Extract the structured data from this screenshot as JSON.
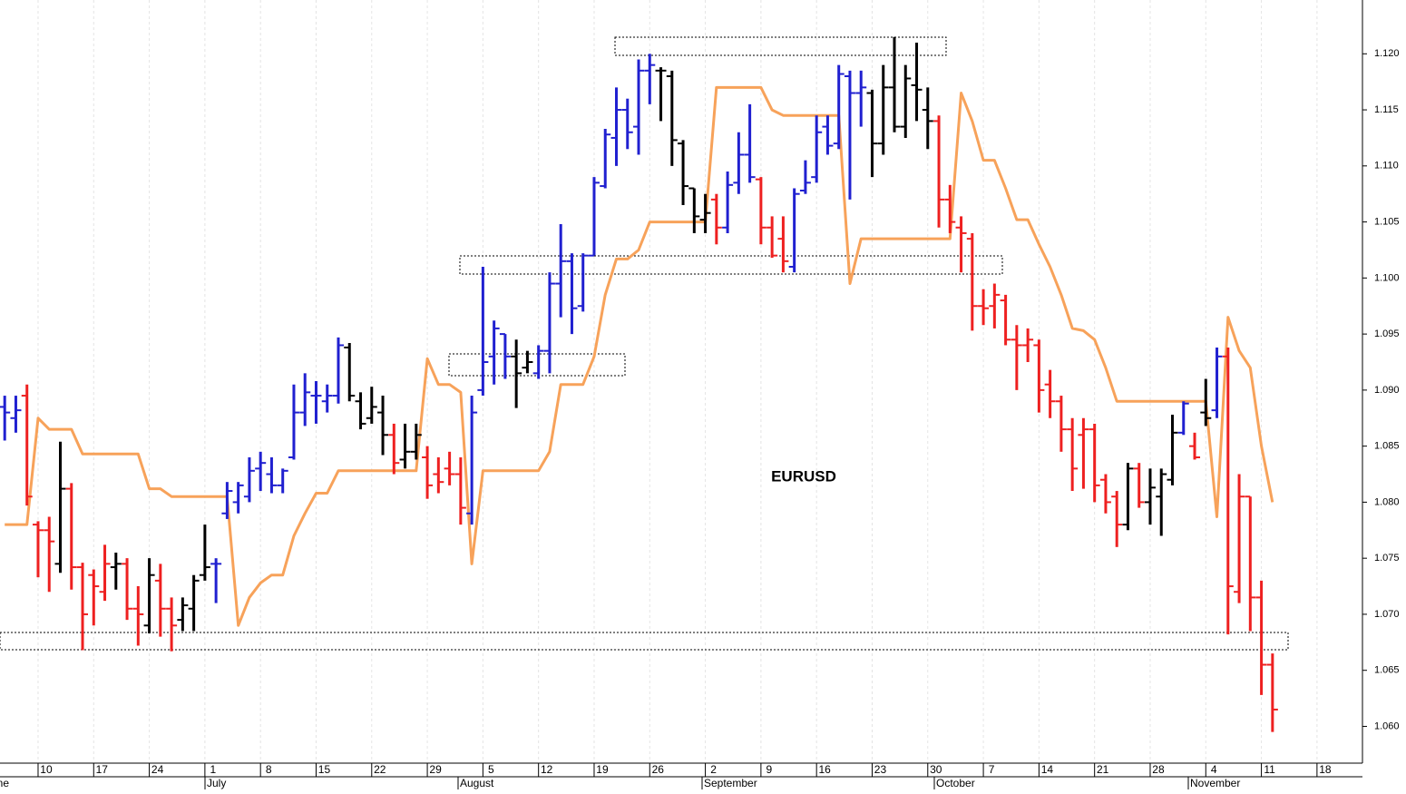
{
  "chart_data": {
    "type": "ohlc",
    "annotation": "EURUSD",
    "categories": [
      null,
      null,
      null,
      "10",
      null,
      null,
      null,
      null,
      "17",
      null,
      null,
      null,
      null,
      "24",
      null,
      null,
      null,
      null,
      "1",
      null,
      null,
      null,
      null,
      "8",
      null,
      null,
      null,
      null,
      "15",
      null,
      null,
      null,
      null,
      "22",
      null,
      null,
      null,
      null,
      "29",
      null,
      null,
      null,
      null,
      "5",
      null,
      null,
      null,
      null,
      "12",
      null,
      null,
      null,
      null,
      "19",
      null,
      null,
      null,
      null,
      "26",
      null,
      null,
      null,
      null,
      "2",
      null,
      null,
      null,
      null,
      "9",
      null,
      null,
      null,
      null,
      "16",
      null,
      null,
      null,
      null,
      "23",
      null,
      null,
      null,
      null,
      "30",
      null,
      null,
      null,
      null,
      "7",
      null,
      null,
      null,
      null,
      "14",
      null,
      null,
      null,
      null,
      "21",
      null,
      null,
      null,
      null,
      "28",
      null,
      null,
      null,
      null,
      "4",
      null,
      null,
      null,
      null,
      "11",
      null,
      null,
      null,
      null,
      "18",
      null,
      null,
      null,
      null
    ],
    "months": [
      "ne",
      "July",
      "August",
      "September",
      "October",
      "November"
    ],
    "open": [
      1.0885,
      1.0875,
      1.0895,
      1.078,
      1.0775,
      1.0745,
      1.0812,
      1.0742,
      1.0735,
      1.072,
      1.0742,
      1.0745,
      1.0705,
      1.069,
      1.073,
      1.0705,
      1.0695,
      1.0705,
      1.0735,
      1.0745,
      1.079,
      1.08,
      1.0805,
      1.083,
      1.0825,
      1.0815,
      1.084,
      1.088,
      1.0895,
      1.089,
      1.0895,
      1.0938,
      1.089,
      1.0875,
      1.088,
      1.086,
      1.0838,
      1.0845,
      1.084,
      1.0825,
      1.083,
      1.0825,
      1.079,
      1.09,
      1.093,
      1.095,
      1.093,
      1.092,
      1.0915,
      1.0935,
      1.0995,
      1.1015,
      1.0975,
      1.102,
      1.1082,
      1.1125,
      1.115,
      1.1135,
      1.1185,
      1.1185,
      1.118,
      1.112,
      1.108,
      1.1052,
      1.107,
      1.1045,
      1.1085,
      1.111,
      1.1088,
      1.1045,
      1.1035,
      1.101,
      1.1078,
      1.109,
      1.1135,
      1.112,
      1.118,
      1.1165,
      1.1165,
      1.112,
      1.117,
      1.1135,
      1.1172,
      1.115,
      1.114,
      1.107,
      1.1045,
      1.1035,
      1.0975,
      1.0975,
      1.098,
      1.0945,
      1.094,
      1.094,
      1.0905,
      1.089,
      1.0865,
      1.086,
      1.0865,
      1.082,
      1.0805,
      1.078,
      1.083,
      1.08,
      1.0805,
      1.082,
      1.0862,
      1.085,
      1.088,
      1.0882,
      1.093,
      1.072,
      1.0805,
      1.0715,
      1.0655,
      null,
      null,
      null,
      null,
      null,
      null,
      null,
      null
    ],
    "high": [
      1.0895,
      1.0895,
      1.0905,
      1.0783,
      1.0787,
      1.0854,
      1.0817,
      1.0746,
      1.074,
      1.0762,
      1.0755,
      1.075,
      1.0725,
      1.075,
      1.0745,
      1.0715,
      1.0715,
      1.0735,
      1.078,
      1.075,
      1.0818,
      1.0818,
      1.084,
      1.0845,
      1.084,
      1.083,
      1.0905,
      1.0915,
      1.0908,
      1.0905,
      1.0947,
      1.0942,
      1.0898,
      1.0903,
      1.0895,
      1.087,
      1.087,
      1.087,
      1.085,
      1.084,
      1.0845,
      1.084,
      1.0895,
      1.101,
      1.0962,
      1.095,
      1.0945,
      1.0935,
      1.094,
      1.1005,
      1.1048,
      1.1022,
      1.1022,
      1.109,
      1.1133,
      1.117,
      1.116,
      1.1195,
      1.12,
      1.1188,
      1.1185,
      1.1123,
      1.108,
      1.1075,
      1.1075,
      1.1095,
      1.113,
      1.1155,
      1.109,
      1.1055,
      1.1055,
      1.108,
      1.1105,
      1.1145,
      1.1145,
      1.119,
      1.1185,
      1.1185,
      1.1168,
      1.119,
      1.1215,
      1.119,
      1.121,
      1.117,
      1.1145,
      1.1083,
      1.1055,
      1.104,
      1.099,
      1.0995,
      1.0985,
      1.0958,
      1.0955,
      1.0945,
      1.0918,
      1.0895,
      1.0875,
      1.0875,
      1.087,
      1.0825,
      1.081,
      1.0835,
      1.0835,
      1.083,
      1.083,
      1.0878,
      1.089,
      1.0862,
      1.091,
      1.0938,
      1.0938,
      1.0825,
      1.0805,
      1.073,
      1.0665,
      null,
      null,
      null,
      null,
      null,
      null,
      null,
      null
    ],
    "low": [
      1.0855,
      1.0862,
      1.0797,
      1.0733,
      1.072,
      1.0737,
      1.0722,
      1.0668,
      1.069,
      1.0712,
      1.0722,
      1.0695,
      1.0672,
      1.0683,
      1.068,
      1.0667,
      1.0685,
      1.0685,
      1.073,
      1.071,
      1.0785,
      1.079,
      1.08,
      1.081,
      1.0808,
      1.0808,
      1.0838,
      1.0868,
      1.087,
      1.088,
      1.0888,
      1.089,
      1.0865,
      1.087,
      1.0842,
      1.0825,
      1.083,
      1.0838,
      1.0803,
      1.0808,
      1.0815,
      1.078,
      1.078,
      1.0895,
      1.0905,
      1.091,
      1.0884,
      1.0915,
      1.091,
      1.0915,
      1.0965,
      1.095,
      1.097,
      1.102,
      1.108,
      1.11,
      1.1115,
      1.111,
      1.1155,
      1.114,
      1.11,
      1.1065,
      1.104,
      1.104,
      1.103,
      1.104,
      1.1075,
      1.1085,
      1.103,
      1.1018,
      1.1005,
      1.1005,
      1.1075,
      1.1085,
      1.111,
      1.1115,
      1.107,
      1.1135,
      1.109,
      1.111,
      1.113,
      1.1125,
      1.114,
      1.1115,
      1.1045,
      1.104,
      1.1005,
      1.0953,
      1.0958,
      1.0955,
      1.094,
      1.09,
      1.0925,
      1.088,
      1.0875,
      1.0845,
      1.081,
      1.0812,
      1.08,
      1.079,
      1.076,
      1.0775,
      1.0795,
      1.078,
      1.077,
      1.0815,
      1.086,
      1.0838,
      1.0868,
      1.0875,
      1.0682,
      1.071,
      1.0685,
      1.0628,
      1.0595,
      null,
      null,
      null,
      null,
      null,
      null,
      null,
      null
    ],
    "close": [
      1.088,
      1.0882,
      1.0805,
      1.0775,
      1.0765,
      1.0812,
      1.0742,
      1.07,
      1.0725,
      1.0745,
      1.0745,
      1.0705,
      1.07,
      1.0735,
      1.0705,
      1.069,
      1.0708,
      1.073,
      1.0742,
      1.0745,
      1.081,
      1.0815,
      1.0828,
      1.0835,
      1.0815,
      1.0828,
      1.088,
      1.0898,
      1.0895,
      1.0895,
      1.094,
      1.0895,
      1.087,
      1.0885,
      1.086,
      1.0835,
      1.0845,
      1.086,
      1.0815,
      1.0818,
      1.0825,
      1.0795,
      1.088,
      1.0925,
      1.0955,
      1.093,
      1.0915,
      1.0925,
      1.0935,
      1.0995,
      1.1015,
      1.0973,
      1.102,
      1.1085,
      1.1128,
      1.115,
      1.113,
      1.1185,
      1.119,
      1.1185,
      1.1123,
      1.1082,
      1.1055,
      1.1058,
      1.1045,
      1.1083,
      1.111,
      1.109,
      1.1045,
      1.102,
      1.1015,
      1.1075,
      1.1085,
      1.113,
      1.1118,
      1.1182,
      1.1165,
      1.117,
      1.112,
      1.117,
      1.1135,
      1.1178,
      1.1168,
      1.114,
      1.107,
      1.105,
      1.104,
      1.0975,
      1.0973,
      1.0985,
      1.0945,
      1.094,
      1.0945,
      1.09,
      1.089,
      1.0865,
      1.083,
      1.0865,
      1.0815,
      1.08,
      1.078,
      1.083,
      1.08,
      1.0813,
      1.0825,
      1.0862,
      1.0888,
      1.084,
      1.0875,
      1.093,
      1.0725,
      1.0805,
      1.0715,
      1.0655,
      1.0615,
      null,
      null,
      null,
      null,
      null,
      null,
      null,
      null
    ],
    "colors": [
      "#2020d0",
      "#2020d0",
      "#ee2020",
      "#ee2020",
      "#ee2020",
      "#000000",
      "#ee2020",
      "#ee2020",
      "#ee2020",
      "#ee2020",
      "#000000",
      "#ee2020",
      "#ee2020",
      "#000000",
      "#ee2020",
      "#ee2020",
      "#000000",
      "#000000",
      "#000000",
      "#2020d0",
      "#2020d0",
      "#2020d0",
      "#2020d0",
      "#2020d0",
      "#2020d0",
      "#2020d0",
      "#2020d0",
      "#2020d0",
      "#2020d0",
      "#2020d0",
      "#2020d0",
      "#000000",
      "#000000",
      "#000000",
      "#000000",
      "#ee2020",
      "#000000",
      "#000000",
      "#ee2020",
      "#ee2020",
      "#ee2020",
      "#ee2020",
      "#2020d0",
      "#2020d0",
      "#2020d0",
      "#2020d0",
      "#000000",
      "#000000",
      "#2020d0",
      "#2020d0",
      "#2020d0",
      "#2020d0",
      "#2020d0",
      "#2020d0",
      "#2020d0",
      "#2020d0",
      "#2020d0",
      "#2020d0",
      "#2020d0",
      "#000000",
      "#000000",
      "#000000",
      "#000000",
      "#000000",
      "#ee2020",
      "#2020d0",
      "#2020d0",
      "#2020d0",
      "#ee2020",
      "#ee2020",
      "#ee2020",
      "#2020d0",
      "#2020d0",
      "#2020d0",
      "#2020d0",
      "#2020d0",
      "#2020d0",
      "#2020d0",
      "#000000",
      "#000000",
      "#000000",
      "#000000",
      "#000000",
      "#000000",
      "#ee2020",
      "#ee2020",
      "#ee2020",
      "#ee2020",
      "#ee2020",
      "#ee2020",
      "#ee2020",
      "#ee2020",
      "#ee2020",
      "#ee2020",
      "#ee2020",
      "#ee2020",
      "#ee2020",
      "#ee2020",
      "#ee2020",
      "#ee2020",
      "#ee2020",
      "#000000",
      "#ee2020",
      "#000000",
      "#000000",
      "#000000",
      "#2020d0",
      "#ee2020",
      "#000000",
      "#2020d0",
      "#ee2020",
      "#ee2020",
      "#ee2020",
      "#ee2020",
      "#ee2020",
      null,
      null,
      null,
      null,
      null,
      null,
      null,
      null
    ],
    "line": {
      "color": "#f7a25a",
      "values": [
        1.078,
        1.078,
        1.078,
        1.0875,
        1.0865,
        1.0865,
        1.0865,
        1.0843,
        1.0843,
        1.0843,
        1.0843,
        1.0843,
        1.0843,
        1.0812,
        1.0812,
        1.0805,
        1.0805,
        1.0805,
        1.0805,
        1.0805,
        1.0805,
        1.069,
        1.0715,
        1.0728,
        1.0735,
        1.0735,
        1.077,
        1.079,
        1.0808,
        1.0808,
        1.0828,
        1.0828,
        1.0828,
        1.0828,
        1.0828,
        1.0828,
        1.0828,
        1.0828,
        1.0928,
        1.0905,
        1.0905,
        1.0898,
        1.0745,
        1.0828,
        1.0828,
        1.0828,
        1.0828,
        1.0828,
        1.0828,
        1.0845,
        1.0905,
        1.0905,
        1.0905,
        1.093,
        1.0985,
        1.1017,
        1.1017,
        1.1025,
        1.105,
        1.105,
        1.105,
        1.105,
        1.105,
        1.105,
        1.117,
        1.117,
        1.117,
        1.117,
        1.117,
        1.115,
        1.1145,
        1.1145,
        1.1145,
        1.1145,
        1.1145,
        1.1145,
        1.0995,
        1.1035,
        1.1035,
        1.1035,
        1.1035,
        1.1035,
        1.1035,
        1.1035,
        1.1035,
        1.1035,
        1.1165,
        1.114,
        1.1105,
        1.1105,
        1.108,
        1.1052,
        1.1052,
        1.103,
        1.101,
        1.0985,
        1.0955,
        1.0953,
        1.0945,
        1.092,
        1.089,
        1.089,
        1.089,
        1.089,
        1.089,
        1.089,
        1.089,
        1.089,
        1.089,
        1.0787,
        1.0965,
        1.0935,
        1.092,
        1.085,
        1.08,
        null,
        null,
        null,
        null,
        null,
        null,
        null,
        null
      ]
    },
    "ylim": [
      1.0568,
      1.1248
    ],
    "yticks": [
      {
        "value": 1.06,
        "label": "1.060"
      },
      {
        "value": 1.065,
        "label": "1.065"
      },
      {
        "value": 1.07,
        "label": "1.070"
      },
      {
        "value": 1.075,
        "label": "1.075"
      },
      {
        "value": 1.08,
        "label": "1.080"
      },
      {
        "value": 1.085,
        "label": "1.085"
      },
      {
        "value": 1.09,
        "label": "1.090"
      },
      {
        "value": 1.095,
        "label": "1.095"
      },
      {
        "value": 1.1,
        "label": "1.100"
      },
      {
        "value": 1.105,
        "label": "1.105"
      },
      {
        "value": 1.11,
        "label": "1.110"
      },
      {
        "value": 1.115,
        "label": "1.115"
      },
      {
        "value": 1.12,
        "label": "1.120"
      }
    ]
  }
}
